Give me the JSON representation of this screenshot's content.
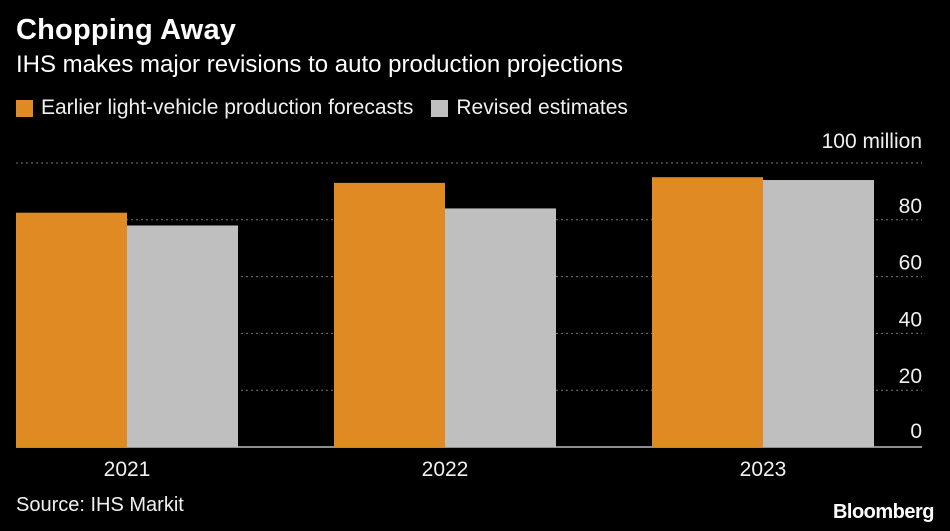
{
  "header": {
    "title": "Chopping Away",
    "subtitle": "IHS makes major revisions to auto production projections"
  },
  "footer": {
    "source": "Source: IHS Markit",
    "brand": "Bloomberg"
  },
  "colors": {
    "background": "#000000",
    "earlier": "#E08A24",
    "revised": "#BFBFBF",
    "grid": "#7a7a7a",
    "text": "#ffffff"
  },
  "chart_data": {
    "type": "bar",
    "title": "Chopping Away",
    "subtitle": "IHS makes major revisions to auto production projections",
    "unit_label": "100 million",
    "xlabel": "",
    "ylabel": "",
    "categories": [
      "2021",
      "2022",
      "2023"
    ],
    "series": [
      {
        "name": "Earlier light-vehicle production forecasts",
        "color": "#E08A24",
        "values": [
          82.5,
          93.0,
          95.0
        ]
      },
      {
        "name": "Revised estimates",
        "color": "#BFBFBF",
        "values": [
          78.0,
          84.0,
          94.0
        ]
      }
    ],
    "ylim": [
      0,
      100
    ],
    "yticks": [
      0,
      20,
      40,
      60,
      80
    ],
    "ytick_labels": [
      "0",
      "20",
      "40",
      "60",
      "80"
    ],
    "grid": true,
    "legend_position": "top-left"
  }
}
